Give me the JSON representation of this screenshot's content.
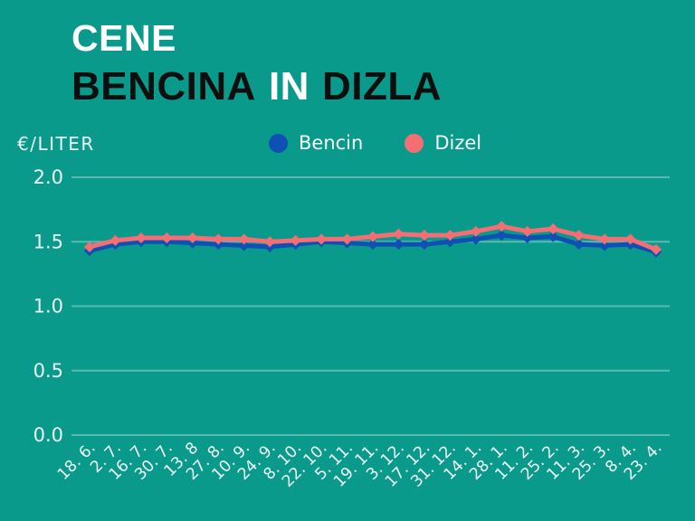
{
  "header": {
    "title_line1": "CENE",
    "title_line2_word1": "BENCINA",
    "title_line2_word2": "IN",
    "title_line2_word3": "DIZLA"
  },
  "colors": {
    "background": "#0a9a8b",
    "grid": "rgba(255,255,255,0.32)",
    "axis_text": "#edf7f5",
    "title_dark": "#0c0f0e",
    "title_light": "#ffffff"
  },
  "chart_data": {
    "type": "line",
    "title": "CENE BENCINA IN DIZLA",
    "ylabel": "€/LITER",
    "xlabel": "",
    "ylim": [
      0,
      2
    ],
    "yticks": [
      0,
      0.5,
      1,
      1.5,
      2
    ],
    "grid": true,
    "legend_position": "top-center",
    "marker": "diamond",
    "x": [
      "18. 6.",
      "2. 7.",
      "16. 7.",
      "30. 7.",
      "13. 8",
      "27. 8.",
      "10. 9.",
      "24. 9.",
      "8. 10.",
      "22. 10.",
      "5. 11.",
      "19. 11.",
      "3. 12.",
      "17. 12.",
      "31. 12.",
      "14. 1.",
      "28. 1.",
      "11. 2.",
      "25. 2.",
      "11. 3.",
      "25. 3.",
      "8. 4.",
      "23. 4."
    ],
    "series": [
      {
        "name": "Bencin",
        "color": "#0e50b4",
        "values": [
          1.43,
          1.48,
          1.5,
          1.5,
          1.49,
          1.48,
          1.47,
          1.46,
          1.48,
          1.5,
          1.49,
          1.48,
          1.48,
          1.48,
          1.5,
          1.52,
          1.55,
          1.53,
          1.54,
          1.48,
          1.47,
          1.48,
          1.42
        ]
      },
      {
        "name": "Dizel",
        "color": "#f56e73",
        "values": [
          1.46,
          1.51,
          1.53,
          1.53,
          1.53,
          1.52,
          1.52,
          1.5,
          1.51,
          1.52,
          1.52,
          1.54,
          1.56,
          1.55,
          1.55,
          1.58,
          1.62,
          1.58,
          1.6,
          1.55,
          1.52,
          1.52,
          1.44
        ]
      }
    ]
  }
}
